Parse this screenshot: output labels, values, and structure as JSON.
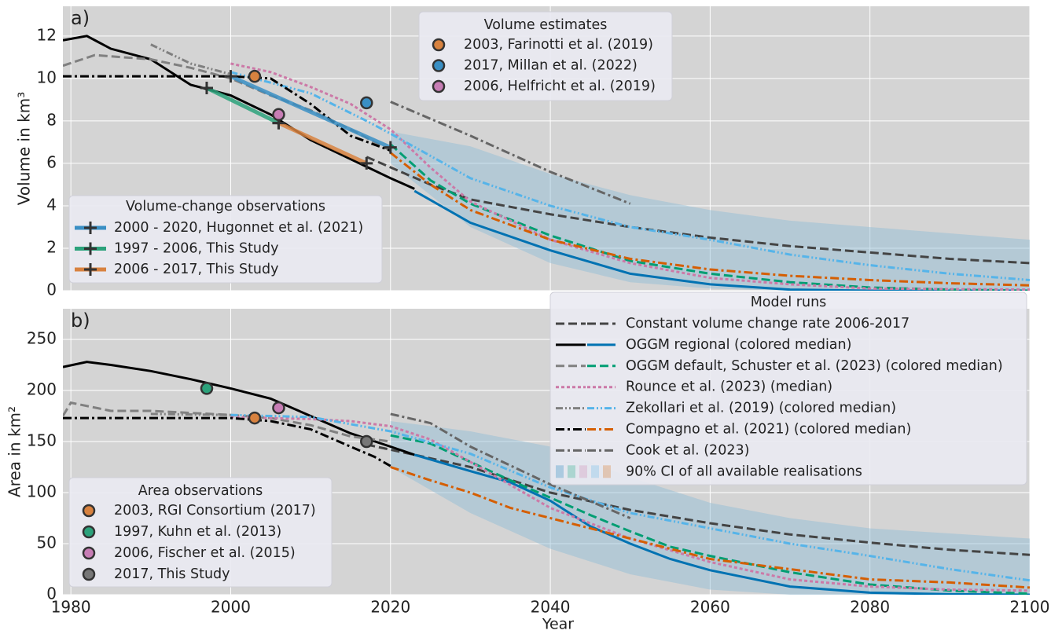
{
  "chart_data": [
    {
      "type": "line",
      "label": "a)",
      "ylabel": "Volume in km³",
      "xlim": [
        1979,
        2100
      ],
      "ylim": [
        0,
        13.4
      ],
      "xticks": [
        1980,
        2000,
        2020,
        2040,
        2060,
        2080,
        2100
      ],
      "yticks": [
        0,
        2,
        4,
        6,
        8,
        10,
        12
      ],
      "grid": true,
      "show_xticklabels": false,
      "ci": {
        "name": "90% CI of all available realisations",
        "color": "#8fbcd8",
        "x": [
          2020,
          2030,
          2040,
          2050,
          2060,
          2070,
          2080,
          2090,
          2100
        ],
        "upper": [
          7.5,
          6.8,
          5.5,
          4.5,
          3.8,
          3.3,
          3.0,
          2.7,
          2.4
        ],
        "lower": [
          6.0,
          3.0,
          1.3,
          0.4,
          0.1,
          0,
          0,
          0,
          0
        ]
      },
      "model_legend_title": "Model runs",
      "series": [
        {
          "name": "Constant volume change rate 2006-2017",
          "dash": "dashed",
          "segments": [
            {
              "color": "#444444",
              "x": [
                2017,
                2025,
                2030,
                2040,
                2050,
                2060,
                2070,
                2080,
                2090,
                2100
              ],
              "values": [
                6.3,
                5.0,
                4.3,
                3.6,
                3.0,
                2.5,
                2.1,
                1.8,
                1.5,
                1.3
              ]
            }
          ]
        },
        {
          "name": "OGGM regional (colored median)",
          "dash": "solid",
          "segments": [
            {
              "color": "#000000",
              "x": [
                1979,
                1982,
                1985,
                1990,
                1995,
                2000,
                2005,
                2010,
                2015,
                2020,
                2023
              ],
              "values": [
                11.8,
                12.0,
                11.4,
                10.9,
                9.7,
                9.2,
                8.3,
                7.1,
                6.2,
                5.3,
                4.8
              ]
            },
            {
              "color": "#0072b2",
              "x": [
                2023,
                2030,
                2040,
                2050,
                2060,
                2070,
                2080,
                2100
              ],
              "values": [
                4.7,
                3.2,
                1.9,
                0.8,
                0.3,
                0.05,
                0,
                0
              ]
            }
          ]
        },
        {
          "name": "OGGM default, Schuster et al. (2023) (colored median)",
          "dash": "dashed",
          "segments": [
            {
              "color": "#808080",
              "x": [
                1979,
                1983,
                1990,
                1995,
                2000,
                2005,
                2010,
                2015,
                2020
              ],
              "values": [
                10.6,
                11.1,
                10.9,
                10.5,
                10.0,
                9.2,
                8.5,
                7.6,
                6.6
              ]
            },
            {
              "color": "#009e73",
              "x": [
                2020,
                2025,
                2030,
                2040,
                2050,
                2060,
                2070,
                2080,
                2090,
                2100
              ],
              "values": [
                6.9,
                5.2,
                4.1,
                2.6,
                1.4,
                0.8,
                0.4,
                0.15,
                0.05,
                0
              ]
            }
          ]
        },
        {
          "name": "Rounce et al. (2023) (median)",
          "dash": "dotted",
          "segments": [
            {
              "color": "#cc79a7",
              "x": [
                2000,
                2005,
                2010,
                2015,
                2020,
                2025,
                2030,
                2040,
                2050,
                2060,
                2070,
                2080,
                2100
              ],
              "values": [
                10.7,
                10.3,
                9.6,
                8.8,
                7.6,
                5.8,
                4.2,
                2.4,
                1.3,
                0.6,
                0.3,
                0.1,
                0.05
              ]
            }
          ]
        },
        {
          "name": "Zekollari et al. (2019) (colored median)",
          "dash": "dashdotdot",
          "segments": [
            {
              "color": "#808080",
              "x": [
                1990,
                1995,
                2000
              ],
              "values": [
                11.6,
                10.7,
                10.2
              ]
            },
            {
              "color": "#56b4e9",
              "x": [
                2000,
                2010,
                2017,
                2020,
                2030,
                2040,
                2050,
                2060,
                2070,
                2080,
                2090,
                2100
              ],
              "values": [
                10.3,
                9.3,
                8.0,
                7.4,
                5.3,
                4.0,
                3.0,
                2.4,
                1.7,
                1.2,
                0.8,
                0.5
              ]
            }
          ]
        },
        {
          "name": "Compagno et al. (2021) (colored median)",
          "dash": "dashdot",
          "segments": [
            {
              "color": "#000000",
              "x": [
                1979,
                2000,
                2005,
                2010,
                2015,
                2020
              ],
              "values": [
                10.1,
                10.1,
                10.0,
                8.8,
                7.3,
                6.6
              ]
            },
            {
              "color": "#d55e00",
              "x": [
                2020,
                2025,
                2030,
                2040,
                2050,
                2060,
                2070,
                2080,
                2090,
                2100
              ],
              "values": [
                6.5,
                5.0,
                3.8,
                2.4,
                1.5,
                1.0,
                0.7,
                0.5,
                0.35,
                0.25
              ]
            }
          ]
        },
        {
          "name": "Cook et al. (2023)",
          "dash": "dashdot",
          "segments": [
            {
              "color": "#666666",
              "x": [
                2020,
                2030,
                2040,
                2050
              ],
              "values": [
                8.9,
                7.3,
                5.6,
                4.1
              ]
            }
          ]
        }
      ],
      "estimates": {
        "title": "Volume estimates",
        "points": [
          {
            "name": "2003, Farinotti et al. (2019)",
            "color": "#d8823f",
            "x": 2003,
            "value": 10.1
          },
          {
            "name": "2017, Millan et al. (2022)",
            "color": "#3a8fc4",
            "x": 2017,
            "value": 8.85
          },
          {
            "name": "2006, Helfricht et al. (2019)",
            "color": "#c77db5",
            "x": 2006,
            "value": 8.3
          }
        ]
      },
      "observations": {
        "title": "Volume-change observations",
        "series": [
          {
            "name": "2000 - 2020, Hugonnet et al. (2021)",
            "color": "#3a8fc4",
            "x": [
              2000,
              2020
            ],
            "values": [
              10.1,
              6.75
            ]
          },
          {
            "name": "1997 - 2006, This Study",
            "color": "#2ca27b",
            "x": [
              1997,
              2006
            ],
            "values": [
              9.55,
              7.9
            ]
          },
          {
            "name": "2006 - 2017, This Study",
            "color": "#d8823f",
            "x": [
              2006,
              2017
            ],
            "values": [
              7.9,
              6.0
            ]
          }
        ]
      }
    },
    {
      "type": "line",
      "label": "b)",
      "xlabel": "Year",
      "ylabel": "Area in km²",
      "xlim": [
        1979,
        2100
      ],
      "ylim": [
        0,
        280
      ],
      "xticks": [
        1980,
        2000,
        2020,
        2040,
        2060,
        2080,
        2100
      ],
      "yticks": [
        0,
        50,
        100,
        150,
        200,
        250
      ],
      "grid": true,
      "show_xticklabels": true,
      "ci": {
        "color": "#8fbcd8",
        "x": [
          2020,
          2030,
          2040,
          2050,
          2060,
          2070,
          2080,
          2090,
          2100
        ],
        "upper": [
          170,
          160,
          145,
          115,
          90,
          75,
          65,
          60,
          55
        ],
        "lower": [
          125,
          80,
          45,
          20,
          5,
          0,
          0,
          0,
          0
        ]
      },
      "series": [
        {
          "dash": "dashed",
          "segments": [
            {
              "color": "#444444",
              "x": [
                2017,
                2023,
                2030,
                2040,
                2050,
                2060,
                2070,
                2080,
                2090,
                2100
              ],
              "values": [
                147,
                137,
                125,
                100,
                83,
                70,
                59,
                51,
                44,
                39
              ]
            }
          ]
        },
        {
          "dash": "solid",
          "segments": [
            {
              "color": "#000000",
              "x": [
                1979,
                1982,
                1985,
                1990,
                1995,
                2000,
                2005,
                2010,
                2015,
                2020,
                2023
              ],
              "values": [
                223,
                228,
                225,
                219,
                211,
                202,
                192,
                175,
                158,
                145,
                137
              ]
            },
            {
              "color": "#0072b2",
              "x": [
                2023,
                2030,
                2035,
                2040,
                2045,
                2050,
                2055,
                2060,
                2065,
                2070,
                2080,
                2090,
                2100
              ],
              "values": [
                137,
                121,
                110,
                92,
                67,
                50,
                35,
                24,
                16,
                8,
                2,
                0.5,
                0
              ]
            }
          ]
        },
        {
          "dash": "dashed",
          "segments": [
            {
              "color": "#808080",
              "x": [
                1979,
                1980,
                1985,
                1990,
                1995,
                2000,
                2005,
                2010,
                2015,
                2020
              ],
              "values": [
                175,
                188,
                180,
                180,
                178,
                176,
                173,
                166,
                155,
                150
              ]
            },
            {
              "color": "#009e73",
              "x": [
                2020,
                2025,
                2030,
                2035,
                2040,
                2045,
                2050,
                2055,
                2060,
                2070,
                2080,
                2090,
                2100
              ],
              "values": [
                156,
                148,
                130,
                112,
                95,
                78,
                62,
                47,
                38,
                22,
                10,
                4,
                1
              ]
            }
          ]
        },
        {
          "dash": "dotted",
          "segments": [
            {
              "color": "#cc79a7",
              "x": [
                2000,
                2005,
                2010,
                2015,
                2020,
                2025,
                2030,
                2040,
                2050,
                2060,
                2070,
                2080,
                2090,
                2100
              ],
              "values": [
                174,
                173,
                172,
                170,
                165,
                152,
                130,
                85,
                55,
                32,
                15,
                8,
                5,
                4
              ]
            }
          ]
        },
        {
          "dash": "dashdotdot",
          "segments": [
            {
              "color": "#808080",
              "x": [
                1990,
                2000
              ],
              "values": [
                177,
                176
              ]
            },
            {
              "color": "#56b4e9",
              "x": [
                2000,
                2010,
                2020,
                2030,
                2040,
                2050,
                2060,
                2070,
                2080,
                2090,
                2100
              ],
              "values": [
                176,
                174,
                160,
                138,
                105,
                80,
                65,
                50,
                38,
                25,
                14
              ]
            }
          ]
        },
        {
          "dash": "dashdot",
          "segments": [
            {
              "color": "#000000",
              "x": [
                1979,
                2000,
                2005,
                2010,
                2015,
                2018,
                2020
              ],
              "values": [
                173,
                173,
                170,
                162,
                145,
                135,
                126
              ]
            },
            {
              "color": "#d55e00",
              "x": [
                2020,
                2025,
                2030,
                2035,
                2040,
                2050,
                2060,
                2070,
                2080,
                2090,
                2100
              ],
              "values": [
                125,
                112,
                100,
                85,
                75,
                55,
                35,
                25,
                15,
                12,
                7
              ]
            }
          ]
        },
        {
          "dash": "dashdot",
          "segments": [
            {
              "color": "#666666",
              "x": [
                2020,
                2025,
                2030,
                2040,
                2050
              ],
              "values": [
                177,
                168,
                145,
                108,
                75
              ]
            }
          ]
        }
      ],
      "observations": {
        "title": "Area observations",
        "points": [
          {
            "name": "2003, RGI Consortium (2017)",
            "color": "#d8823f",
            "x": 2003,
            "value": 173
          },
          {
            "name": "1997, Kuhn et al. (2013)",
            "color": "#2ca27b",
            "x": 1997,
            "value": 202
          },
          {
            "name": "2006, Fischer et al. (2015)",
            "color": "#c77db5",
            "x": 2006,
            "value": 183
          },
          {
            "name": "2017, This Study",
            "color": "#777777",
            "x": 2017,
            "value": 150
          }
        ]
      }
    }
  ]
}
